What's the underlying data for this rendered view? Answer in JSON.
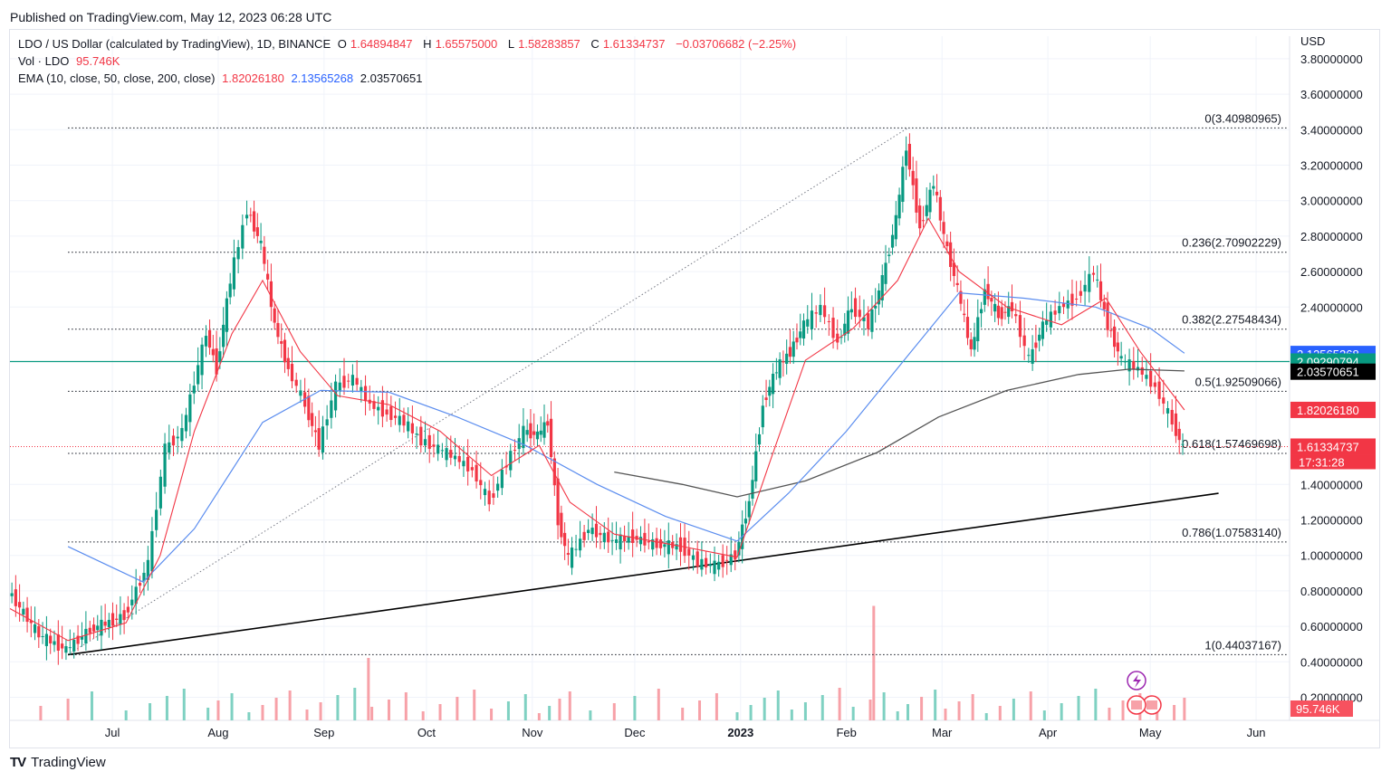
{
  "published": "Published on TradingView.com, May 12, 2023 06:28 UTC",
  "legend": {
    "symbol": "LDO / US Dollar (calculated by TradingView), 1D, BINANCE",
    "o_label": "O",
    "o_value": "1.64894847",
    "h_label": "H",
    "h_value": "1.65575000",
    "l_label": "L",
    "l_value": "1.58283857",
    "c_label": "C",
    "c_value": "1.61334737",
    "change": "−0.03706682 (−2.25%)",
    "vol_label": "Vol · LDO",
    "vol_value": "95.746K",
    "ema_label": "EMA (10, close, 50, close, 200, close)",
    "ema10": "1.82026180",
    "ema50": "2.13565268",
    "ema200": "2.03570651"
  },
  "footer": {
    "brand": "TradingView",
    "logo": "TV"
  },
  "chart_data": {
    "type": "candlestick",
    "symbol": "LDO / US Dollar",
    "timeframe": "1D",
    "exchange": "BINANCE",
    "currency": "USD",
    "y_ticks": [
      "3.80000000",
      "3.60000000",
      "3.40000000",
      "3.20000000",
      "3.00000000",
      "2.80000000",
      "2.60000000",
      "2.40000000",
      "1.40000000",
      "1.20000000",
      "1.00000000",
      "0.80000000",
      "0.60000000",
      "0.40000000",
      "0.20000000"
    ],
    "x_ticks": [
      "Jul",
      "Aug",
      "Sep",
      "Oct",
      "Nov",
      "Dec",
      "2023",
      "Feb",
      "Mar",
      "Apr",
      "May",
      "Jun"
    ],
    "ylim": [
      0.1,
      3.9
    ],
    "fibonacci": [
      {
        "label": "0(3.40980965)",
        "value": 3.40980965
      },
      {
        "label": "0.236(2.70902229)",
        "value": 2.70902229
      },
      {
        "label": "0.382(2.27548434)",
        "value": 2.27548434
      },
      {
        "label": "0.5(1.92509066)",
        "value": 1.92509066
      },
      {
        "label": "0.618(1.57469698)",
        "value": 1.57469698
      },
      {
        "label": "0.786(1.07583140)",
        "value": 1.0758314
      },
      {
        "label": "1(0.44037167)",
        "value": 0.44037167
      }
    ],
    "price_badges": [
      {
        "label": "2.13565268",
        "value": 2.13565268,
        "color": "#2962ff"
      },
      {
        "label": "2.09290794",
        "value": 2.09290794,
        "color": "#089981"
      },
      {
        "label": "2.03570651",
        "value": 2.03570651,
        "color": "#000000"
      },
      {
        "label": "1.82026180",
        "value": 1.8202618,
        "color": "#f23645"
      },
      {
        "label": "1.61334737",
        "value": 1.61334737,
        "color": "#f23645"
      }
    ],
    "countdown": "17:31:28",
    "volume_badge": "95.746K",
    "axis_unit": "USD",
    "horizontal_line": 2.09290794,
    "last_price": 1.61334737,
    "trendline": [
      {
        "date": "2022-06-18",
        "value": 0.44
      },
      {
        "date": "2023-05-21",
        "value": 1.35
      }
    ],
    "fib_anchor": [
      {
        "date": "2022-06-18",
        "value": 0.44037167
      },
      {
        "date": "2023-02-19",
        "value": 3.40980965
      }
    ],
    "close_path": [
      {
        "date": "2022-06-01",
        "value": 0.8
      },
      {
        "date": "2022-06-10",
        "value": 0.55
      },
      {
        "date": "2022-06-18",
        "value": 0.47
      },
      {
        "date": "2022-06-25",
        "value": 0.58
      },
      {
        "date": "2022-07-05",
        "value": 0.66
      },
      {
        "date": "2022-07-12",
        "value": 0.95
      },
      {
        "date": "2022-07-17",
        "value": 1.6
      },
      {
        "date": "2022-07-22",
        "value": 1.7
      },
      {
        "date": "2022-07-29",
        "value": 2.25
      },
      {
        "date": "2022-08-01",
        "value": 2.05
      },
      {
        "date": "2022-08-05",
        "value": 2.55
      },
      {
        "date": "2022-08-10",
        "value": 2.95
      },
      {
        "date": "2022-08-14",
        "value": 2.75
      },
      {
        "date": "2022-08-18",
        "value": 2.3
      },
      {
        "date": "2022-08-22",
        "value": 2.05
      },
      {
        "date": "2022-08-27",
        "value": 1.85
      },
      {
        "date": "2022-08-31",
        "value": 1.62
      },
      {
        "date": "2022-09-05",
        "value": 1.95
      },
      {
        "date": "2022-09-10",
        "value": 2.0
      },
      {
        "date": "2022-09-15",
        "value": 1.85
      },
      {
        "date": "2022-09-20",
        "value": 1.8
      },
      {
        "date": "2022-09-25",
        "value": 1.75
      },
      {
        "date": "2022-09-30",
        "value": 1.65
      },
      {
        "date": "2022-10-05",
        "value": 1.6
      },
      {
        "date": "2022-10-10",
        "value": 1.55
      },
      {
        "date": "2022-10-15",
        "value": 1.48
      },
      {
        "date": "2022-10-20",
        "value": 1.3
      },
      {
        "date": "2022-10-25",
        "value": 1.52
      },
      {
        "date": "2022-10-30",
        "value": 1.7
      },
      {
        "date": "2022-11-03",
        "value": 1.68
      },
      {
        "date": "2022-11-06",
        "value": 1.75
      },
      {
        "date": "2022-11-09",
        "value": 1.2
      },
      {
        "date": "2022-11-12",
        "value": 0.98
      },
      {
        "date": "2022-11-18",
        "value": 1.15
      },
      {
        "date": "2022-11-25",
        "value": 1.08
      },
      {
        "date": "2022-12-01",
        "value": 1.1
      },
      {
        "date": "2022-12-08",
        "value": 1.06
      },
      {
        "date": "2022-12-15",
        "value": 1.05
      },
      {
        "date": "2022-12-20",
        "value": 0.96
      },
      {
        "date": "2022-12-25",
        "value": 0.94
      },
      {
        "date": "2022-12-31",
        "value": 1.0
      },
      {
        "date": "2023-01-04",
        "value": 1.3
      },
      {
        "date": "2023-01-08",
        "value": 1.85
      },
      {
        "date": "2023-01-12",
        "value": 2.05
      },
      {
        "date": "2023-01-16",
        "value": 2.15
      },
      {
        "date": "2023-01-20",
        "value": 2.3
      },
      {
        "date": "2023-01-25",
        "value": 2.4
      },
      {
        "date": "2023-01-30",
        "value": 2.2
      },
      {
        "date": "2023-02-03",
        "value": 2.4
      },
      {
        "date": "2023-02-08",
        "value": 2.3
      },
      {
        "date": "2023-02-12",
        "value": 2.55
      },
      {
        "date": "2023-02-16",
        "value": 2.9
      },
      {
        "date": "2023-02-19",
        "value": 3.3
      },
      {
        "date": "2023-02-23",
        "value": 2.85
      },
      {
        "date": "2023-02-27",
        "value": 3.1
      },
      {
        "date": "2023-03-02",
        "value": 2.8
      },
      {
        "date": "2023-03-06",
        "value": 2.5
      },
      {
        "date": "2023-03-10",
        "value": 2.15
      },
      {
        "date": "2023-03-14",
        "value": 2.5
      },
      {
        "date": "2023-03-18",
        "value": 2.35
      },
      {
        "date": "2023-03-22",
        "value": 2.4
      },
      {
        "date": "2023-03-27",
        "value": 2.1
      },
      {
        "date": "2023-03-31",
        "value": 2.3
      },
      {
        "date": "2023-04-05",
        "value": 2.4
      },
      {
        "date": "2023-04-10",
        "value": 2.45
      },
      {
        "date": "2023-04-15",
        "value": 2.6
      },
      {
        "date": "2023-04-19",
        "value": 2.3
      },
      {
        "date": "2023-04-23",
        "value": 2.1
      },
      {
        "date": "2023-04-28",
        "value": 2.05
      },
      {
        "date": "2023-05-03",
        "value": 1.95
      },
      {
        "date": "2023-05-08",
        "value": 1.75
      },
      {
        "date": "2023-05-11",
        "value": 1.61
      }
    ],
    "ema10_path": [
      {
        "date": "2022-06-01",
        "value": 0.7
      },
      {
        "date": "2022-06-18",
        "value": 0.52
      },
      {
        "date": "2022-07-05",
        "value": 0.62
      },
      {
        "date": "2022-07-15",
        "value": 1.0
      },
      {
        "date": "2022-07-25",
        "value": 1.7
      },
      {
        "date": "2022-08-05",
        "value": 2.25
      },
      {
        "date": "2022-08-14",
        "value": 2.55
      },
      {
        "date": "2022-08-25",
        "value": 2.15
      },
      {
        "date": "2022-09-05",
        "value": 1.9
      },
      {
        "date": "2022-09-20",
        "value": 1.85
      },
      {
        "date": "2022-10-05",
        "value": 1.7
      },
      {
        "date": "2022-10-20",
        "value": 1.45
      },
      {
        "date": "2022-11-03",
        "value": 1.62
      },
      {
        "date": "2022-11-12",
        "value": 1.3
      },
      {
        "date": "2022-11-25",
        "value": 1.12
      },
      {
        "date": "2022-12-15",
        "value": 1.05
      },
      {
        "date": "2022-12-31",
        "value": 0.99
      },
      {
        "date": "2023-01-10",
        "value": 1.55
      },
      {
        "date": "2023-01-20",
        "value": 2.1
      },
      {
        "date": "2023-02-03",
        "value": 2.28
      },
      {
        "date": "2023-02-16",
        "value": 2.55
      },
      {
        "date": "2023-02-25",
        "value": 2.9
      },
      {
        "date": "2023-03-06",
        "value": 2.6
      },
      {
        "date": "2023-03-20",
        "value": 2.4
      },
      {
        "date": "2023-04-05",
        "value": 2.3
      },
      {
        "date": "2023-04-18",
        "value": 2.45
      },
      {
        "date": "2023-04-28",
        "value": 2.15
      },
      {
        "date": "2023-05-11",
        "value": 1.82
      }
    ],
    "ema50_path": [
      {
        "date": "2022-06-18",
        "value": 1.05
      },
      {
        "date": "2022-07-10",
        "value": 0.85
      },
      {
        "date": "2022-07-25",
        "value": 1.15
      },
      {
        "date": "2022-08-14",
        "value": 1.75
      },
      {
        "date": "2022-08-31",
        "value": 1.93
      },
      {
        "date": "2022-09-20",
        "value": 1.92
      },
      {
        "date": "2022-10-10",
        "value": 1.78
      },
      {
        "date": "2022-10-30",
        "value": 1.62
      },
      {
        "date": "2022-11-20",
        "value": 1.4
      },
      {
        "date": "2022-12-10",
        "value": 1.22
      },
      {
        "date": "2022-12-31",
        "value": 1.08
      },
      {
        "date": "2023-01-15",
        "value": 1.35
      },
      {
        "date": "2023-02-01",
        "value": 1.7
      },
      {
        "date": "2023-02-20",
        "value": 2.15
      },
      {
        "date": "2023-03-06",
        "value": 2.48
      },
      {
        "date": "2023-03-25",
        "value": 2.45
      },
      {
        "date": "2023-04-15",
        "value": 2.4
      },
      {
        "date": "2023-05-01",
        "value": 2.28
      },
      {
        "date": "2023-05-11",
        "value": 2.14
      }
    ],
    "ema200_path": [
      {
        "date": "2022-11-25",
        "value": 1.47
      },
      {
        "date": "2022-12-15",
        "value": 1.4
      },
      {
        "date": "2022-12-31",
        "value": 1.33
      },
      {
        "date": "2023-01-20",
        "value": 1.42
      },
      {
        "date": "2023-02-10",
        "value": 1.58
      },
      {
        "date": "2023-02-28",
        "value": 1.78
      },
      {
        "date": "2023-03-20",
        "value": 1.93
      },
      {
        "date": "2023-04-10",
        "value": 2.02
      },
      {
        "date": "2023-04-25",
        "value": 2.05
      },
      {
        "date": "2023-05-11",
        "value": 2.04
      }
    ],
    "volume_spikes": [
      {
        "date": "2022-09-14",
        "value": 0.3
      },
      {
        "date": "2023-02-09",
        "value": 0.55
      }
    ],
    "colors": {
      "up": "#089981",
      "down": "#f23645",
      "ema10": "#f23645",
      "ema50": "#2962ff",
      "ema200": "#131722",
      "grid": "#f0f3fa"
    }
  }
}
